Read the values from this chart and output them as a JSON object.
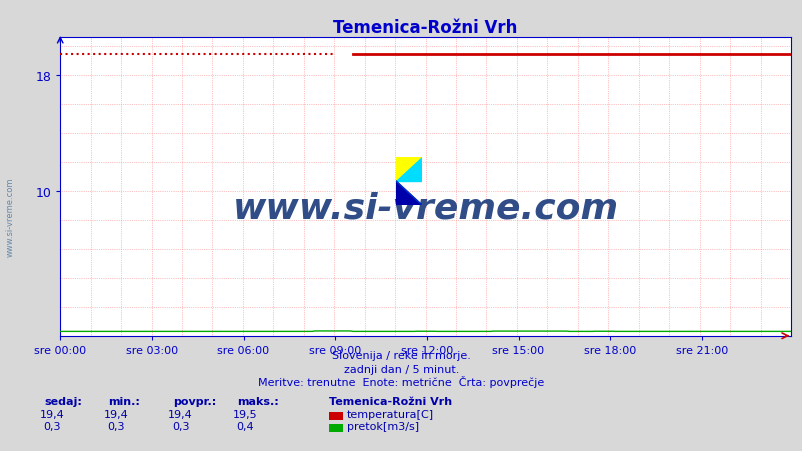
{
  "title": "Temenica-Rožni Vrh",
  "title_color": "#0000cc",
  "bg_color": "#d8d8d8",
  "plot_bg_color": "#ffffff",
  "grid_color": "#ff8888",
  "axis_color": "#0000cc",
  "temp_color": "#cc0000",
  "flow_color": "#00aa00",
  "ymin": 0,
  "ymax": 20.56,
  "ytick_vals": [
    10,
    18
  ],
  "n_points": 288,
  "temp_value": 19.4,
  "flow_value": 0.3,
  "x_labels": [
    "sre 00:00",
    "sre 03:00",
    "sre 06:00",
    "sre 09:00",
    "sre 12:00",
    "sre 15:00",
    "sre 18:00",
    "sre 21:00"
  ],
  "x_tick_positions": [
    0,
    36,
    72,
    108,
    144,
    180,
    216,
    252
  ],
  "subtitle1": "Slovenija / reke in morje.",
  "subtitle2": "zadnji dan / 5 minut.",
  "subtitle3": "Meritve: trenutne  Enote: metrične  Črta: povprečje",
  "watermark": "www.si-vreme.com",
  "watermark_color": "#1a3a7a",
  "left_label": "www.si-vreme.com",
  "left_label_color": "#6688aa",
  "legend_title": "Temenica-Rožni Vrh",
  "legend_temp": "temperatura[C]",
  "legend_flow": "pretok[m3/s]",
  "stat_headers": [
    "sedaj:",
    "min.:",
    "povpr.:",
    "maks.:"
  ],
  "stat_temp": [
    "19,4",
    "19,4",
    "19,4",
    "19,5"
  ],
  "stat_flow": [
    "0,3",
    "0,3",
    "0,3",
    "0,4"
  ],
  "dotted_end": 108,
  "solid_start": 115
}
